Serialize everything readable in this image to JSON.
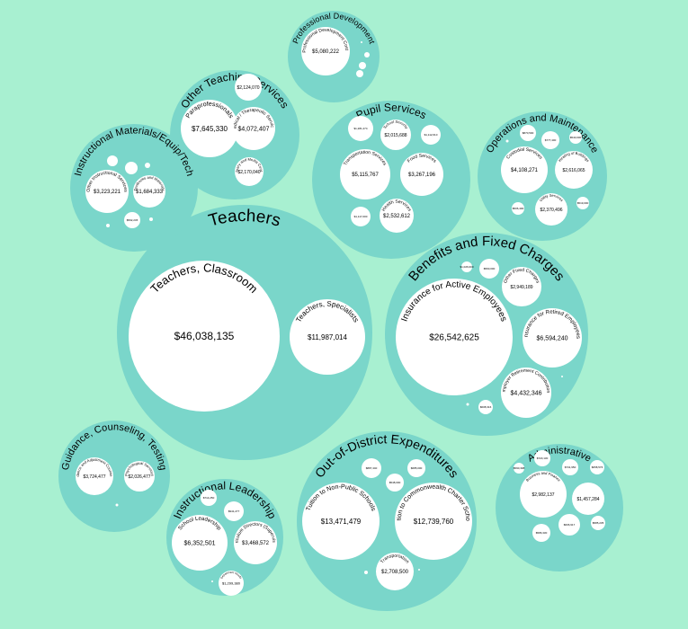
{
  "chart_data": {
    "type": "packed-bubble",
    "title": "",
    "groups": [
      {
        "name": "Teachers",
        "children": [
          {
            "name": "Teachers, Classroom",
            "value": 46038135,
            "label": "$46,038,135"
          },
          {
            "name": "Teachers, Specialists",
            "value": 11987014,
            "label": "$11,987,014"
          }
        ]
      },
      {
        "name": "Benefits and Fixed Charges",
        "children": [
          {
            "name": "Insurance for Active Employees",
            "value": 26542625,
            "label": "$26,542,625"
          },
          {
            "name": "Insurance for Retired Employees",
            "value": 6594240,
            "label": "$6,594,240"
          },
          {
            "name": "Employer Retirement Contributions",
            "value": 4432346,
            "label": "$4,432,346"
          },
          {
            "name": "Other Fixed Charges",
            "value": 2949189,
            "label": "$2,949,189"
          },
          {
            "name": "",
            "value": 1026000,
            "label": "$1,026,000"
          },
          {
            "name": "",
            "value": 560000,
            "label": "$560,000"
          },
          {
            "name": "",
            "value": 608316,
            "label": "$608,316"
          },
          {
            "name": "",
            "value": 150000,
            "label": ""
          },
          {
            "name": "",
            "value": 60000,
            "label": ""
          },
          {
            "name": "",
            "value": 20000,
            "label": ""
          }
        ]
      },
      {
        "name": "Out-of-District Expenditures",
        "children": [
          {
            "name": "Tuition to Non-Public Schools",
            "value": 13471479,
            "label": "$13,471,479"
          },
          {
            "name": "Tuition to Commonwealth Charter Schools",
            "value": 12739760,
            "label": "$12,739,760"
          },
          {
            "name": "Transportation",
            "value": 2708500,
            "label": "$2,708,500"
          },
          {
            "name": "",
            "value": 887440,
            "label": "$887,440"
          },
          {
            "name": "",
            "value": 685000,
            "label": "$685,000"
          },
          {
            "name": "",
            "value": 548000,
            "label": "$548,000"
          },
          {
            "name": "",
            "value": 90000,
            "label": ""
          },
          {
            "name": "",
            "value": 20000,
            "label": ""
          }
        ]
      },
      {
        "name": "Other Teaching Services",
        "children": [
          {
            "name": "Paraprofessionals",
            "value": 7645330,
            "label": "$7,645,330"
          },
          {
            "name": "Medical / Therapeutic Services",
            "value": 4072407,
            "label": "$4,072,407"
          },
          {
            "name": "Library and Media Center",
            "value": 2170040,
            "label": "$2,170,040"
          },
          {
            "name": "",
            "value": 2124070,
            "label": "$2,124,070"
          }
        ]
      },
      {
        "name": "Pupil Services",
        "children": [
          {
            "name": "Transportation Services",
            "value": 5115767,
            "label": "$5,115,767"
          },
          {
            "name": "Food Services",
            "value": 3267196,
            "label": "$3,267,196"
          },
          {
            "name": "Health Services",
            "value": 2532612,
            "label": "$2,532,612"
          },
          {
            "name": "School Security",
            "value": 2015688,
            "label": "$2,015,688"
          },
          {
            "name": "",
            "value": 1281274,
            "label": "$1,281,274"
          },
          {
            "name": "Athletics",
            "value": 1112610,
            "label": "$1,112,610"
          },
          {
            "name": "",
            "value": 1117000,
            "label": "$1,117,000"
          }
        ]
      },
      {
        "name": "Operations and Maintenance",
        "children": [
          {
            "name": "Custodial Services",
            "value": 4108271,
            "label": "$4,108,271"
          },
          {
            "name": "Heating of Buildings",
            "value": 2616065,
            "label": "$2,616,065"
          },
          {
            "name": "Utility Services",
            "value": 2370496,
            "label": "$2,370,496"
          },
          {
            "name": "",
            "value": 870500,
            "label": "$870,500"
          },
          {
            "name": "",
            "value": 777400,
            "label": "$777,400"
          },
          {
            "name": "",
            "value": 540000,
            "label": "$540,000"
          },
          {
            "name": "",
            "value": 506400,
            "label": "$506,400"
          },
          {
            "name": "",
            "value": 519000,
            "label": "$519,000"
          },
          {
            "name": "",
            "value": 80000,
            "label": ""
          }
        ]
      },
      {
        "name": "Instructional Materials/Equip/Tech",
        "children": [
          {
            "name": "Other Instructional Services",
            "value": 3223221,
            "label": "$3,223,221"
          },
          {
            "name": "Textbooks and Materials",
            "value": 1684333,
            "label": "$1,684,333"
          },
          {
            "name": "",
            "value": 592245,
            "label": "$592,245"
          },
          {
            "name": "",
            "value": 380000,
            "label": ""
          },
          {
            "name": "",
            "value": 280000,
            "label": ""
          },
          {
            "name": "",
            "value": 100000,
            "label": ""
          },
          {
            "name": "",
            "value": 60000,
            "label": ""
          },
          {
            "name": "",
            "value": 40000,
            "label": ""
          }
        ]
      },
      {
        "name": "Professional Development",
        "children": [
          {
            "name": "Professional Development Costs",
            "value": 5080222,
            "label": "$5,080,222"
          },
          {
            "name": "",
            "value": 260000,
            "label": ""
          },
          {
            "name": "",
            "value": 200000,
            "label": ""
          },
          {
            "name": "",
            "value": 150000,
            "label": ""
          },
          {
            "name": "",
            "value": 20000,
            "label": ""
          }
        ]
      },
      {
        "name": "Guidance, Counseling, Testing",
        "children": [
          {
            "name": "Guidance and Adjustment Counselors",
            "value": 3724477,
            "label": "$3,724,477"
          },
          {
            "name": "Psychological Services",
            "value": 2026477,
            "label": "$2,026,477"
          },
          {
            "name": "",
            "value": 20000,
            "label": ""
          }
        ]
      },
      {
        "name": "Instructional Leadership",
        "children": [
          {
            "name": "School Leadership",
            "value": 6352501,
            "label": "$6,352,501"
          },
          {
            "name": "Curriculum Directors (Supervisory)",
            "value": 3468572,
            "label": "$3,468,572"
          },
          {
            "name": "Department Heads",
            "value": 1299380,
            "label": "$1,299,380"
          },
          {
            "name": "",
            "value": 941277,
            "label": "$941,277"
          },
          {
            "name": "",
            "value": 714250,
            "label": "$714,250"
          },
          {
            "name": "",
            "value": 20000,
            "label": ""
          }
        ]
      },
      {
        "name": "Administrative",
        "children": [
          {
            "name": "Business and Finance",
            "value": 2982137,
            "label": "$2,982,137"
          },
          {
            "name": "",
            "value": 1457284,
            "label": "$1,457,284"
          },
          {
            "name": "",
            "value": 606917,
            "label": "$606,917"
          },
          {
            "name": "",
            "value": 720130,
            "label": "$720,130"
          },
          {
            "name": "",
            "value": 731950,
            "label": "$731,950"
          },
          {
            "name": "",
            "value": 658576,
            "label": "$658,576"
          },
          {
            "name": "",
            "value": 590398,
            "label": "$590,398"
          },
          {
            "name": "",
            "value": 586330,
            "label": "$586,330"
          },
          {
            "name": "",
            "value": 585235,
            "label": "$585,235"
          }
        ]
      }
    ],
    "colors": {
      "background": "#a8f0d1",
      "group_fill": "#7ad6ca",
      "leaf_fill": "#ffffff",
      "text": "#000000"
    }
  }
}
